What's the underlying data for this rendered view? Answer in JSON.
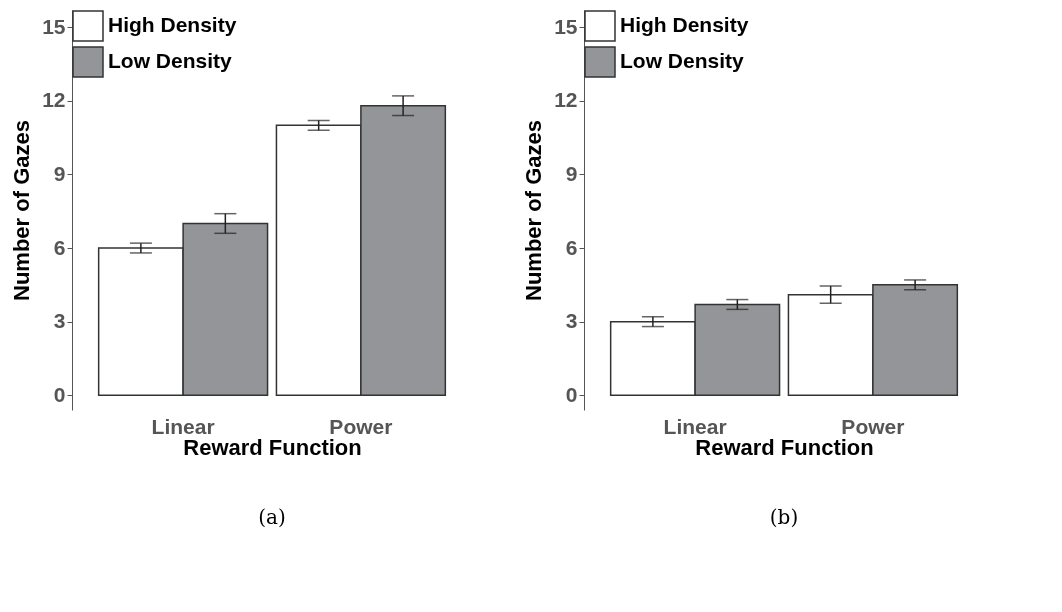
{
  "chart_data": [
    {
      "type": "bar",
      "xlabel": "Reward Function",
      "ylabel": "Number of Gazes",
      "categories": [
        "Linear",
        "Power"
      ],
      "series": [
        {
          "name": "High Density",
          "color": "#ffffff",
          "values": [
            6.0,
            11.0
          ],
          "errors": [
            0.2,
            0.2
          ]
        },
        {
          "name": "Low Density",
          "color": "#939598",
          "values": [
            7.0,
            11.8
          ],
          "errors": [
            0.4,
            0.4
          ]
        }
      ],
      "ylim": [
        -0.6,
        15.7
      ],
      "yticks": [
        0,
        3,
        6,
        9,
        12,
        15
      ],
      "grid": false,
      "legend": "top left",
      "annotations": [
        "(a)"
      ]
    },
    {
      "type": "bar",
      "xlabel": "Reward Function",
      "ylabel": "Number of Gazes",
      "categories": [
        "Linear",
        "Power"
      ],
      "series": [
        {
          "name": "High Density",
          "color": "#ffffff",
          "values": [
            3.0,
            4.1
          ],
          "errors": [
            0.2,
            0.35
          ]
        },
        {
          "name": "Low Density",
          "color": "#939598",
          "values": [
            3.7,
            4.5
          ],
          "errors": [
            0.2,
            0.2
          ]
        }
      ],
      "ylim": [
        -0.6,
        15.7
      ],
      "yticks": [
        0,
        3,
        6,
        9,
        12,
        15
      ],
      "grid": false,
      "legend": "top left",
      "annotations": [
        "(b)"
      ]
    }
  ]
}
